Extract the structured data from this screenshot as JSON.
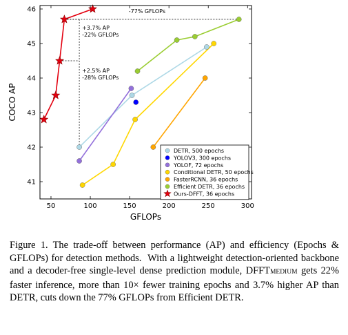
{
  "chart_data": {
    "type": "scatter",
    "xlabel": "GFLOPs",
    "ylabel": "COCO AP",
    "xlim": [
      36,
      305
    ],
    "ylim": [
      40.5,
      46.1
    ],
    "xticks": [
      50,
      100,
      150,
      200,
      250,
      300
    ],
    "yticks": [
      41,
      42,
      43,
      44,
      45,
      46
    ],
    "series": [
      {
        "name": "DETR, 500 epochs",
        "color": "#add8e6",
        "marker": "circle",
        "line": true,
        "x": [
          86,
          153,
          248
        ],
        "y": [
          42.0,
          43.5,
          44.9
        ]
      },
      {
        "name": "YOLOV3, 300 epochs",
        "color": "#0000ff",
        "marker": "circle",
        "line": false,
        "x": [
          158
        ],
        "y": [
          43.3
        ]
      },
      {
        "name": "YOLOF, 72 epochs",
        "color": "#9370db",
        "marker": "circle",
        "line": true,
        "x": [
          86,
          152
        ],
        "y": [
          41.6,
          43.7
        ]
      },
      {
        "name": "Conditional DETR, 50 epochs",
        "color": "#ffd700",
        "marker": "circle",
        "line": true,
        "x": [
          90,
          129,
          157,
          257
        ],
        "y": [
          40.9,
          41.5,
          42.8,
          45.0
        ]
      },
      {
        "name": "FasterRCNN, 36 epochs",
        "color": "#ffa500",
        "marker": "circle",
        "line": true,
        "x": [
          180,
          246
        ],
        "y": [
          42.0,
          44.0
        ]
      },
      {
        "name": "Efficient DETR, 36 epochs",
        "color": "#9acd32",
        "marker": "circle",
        "line": true,
        "x": [
          160,
          210,
          233,
          289
        ],
        "y": [
          44.2,
          45.1,
          45.2,
          45.7
        ]
      },
      {
        "name": "Ours-DFFT, 36 epochs",
        "color": "#e3000f",
        "marker": "star",
        "line": true,
        "x": [
          41,
          56,
          61,
          67,
          103
        ],
        "y": [
          42.8,
          43.5,
          44.5,
          45.7,
          46.0
        ]
      }
    ],
    "annotations": [
      {
        "text": "-77% GFLOPs"
      },
      {
        "text": "+3.7% AP"
      },
      {
        "text": "-22% GFLOPs"
      },
      {
        "text": "+2.5% AP"
      },
      {
        "text": "-28% GFLOPs"
      }
    ],
    "legend_position": "lower-right",
    "grid": false
  },
  "caption": {
    "part1": "Figure 1. The trade-off between performance (AP) and efficiency (Epochs & GFLOPs) for detection methods.  With a lightweight detection-oriented backbone and a decoder-free single-level dense prediction module, DFFT",
    "sub": "MEDIUM",
    "part2": " gets 22% faster inference, more than 10× fewer training epochs and 3.7% higher AP than DETR, cuts down the 77% GFLOPs from Efficient DETR."
  }
}
